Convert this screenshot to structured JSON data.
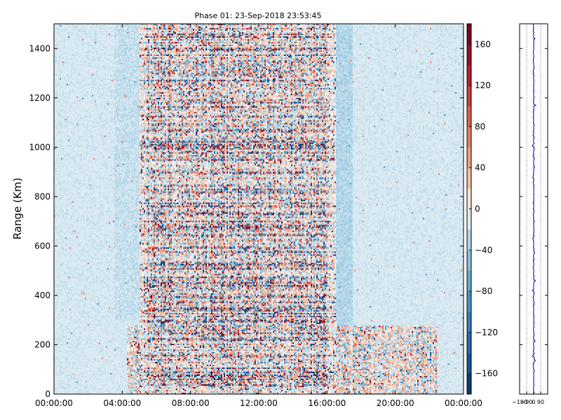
{
  "chart_data": [
    {
      "type": "heatmap",
      "title": "Phase 01: 23-Sep-2018 23:53:45",
      "ylabel": "Range (Km)",
      "xlabel": "",
      "x_ticks": [
        "00:00:00",
        "04:00:00",
        "08:00:00",
        "12:00:00",
        "16:00:00",
        "20:00:00",
        "00:00:00"
      ],
      "x_tick_hours": [
        0,
        4,
        8,
        12,
        16,
        20,
        24
      ],
      "xlim_hours": [
        0,
        24
      ],
      "y_ticks": [
        0,
        200,
        400,
        600,
        800,
        1000,
        1200,
        1400
      ],
      "ylim": [
        0,
        1500
      ],
      "colormap": "RdBu_r",
      "colorbar": {
        "ticks": [
          -160,
          -120,
          -80,
          -40,
          0,
          40,
          80,
          120,
          160
        ],
        "labels": [
          "−160",
          "−120",
          "−80",
          "−40",
          "0",
          "40",
          "80",
          "120",
          "160"
        ],
        "range": [
          -180,
          180
        ],
        "levels": 18
      },
      "noisy_region_hours": [
        5,
        16.5
      ],
      "noisy_low_range_region": {
        "hours": [
          4.3,
          22.5
        ],
        "range_max": 280
      },
      "colors": {
        "neg_max": "#053061",
        "neg_mid": "#4393c3",
        "neg_low": "#d1e5f0",
        "zero": "#f7f7f7",
        "pos_low": "#fddbc7",
        "pos_mid": "#d6604d",
        "pos_max": "#67001f"
      }
    },
    {
      "type": "line",
      "title": "",
      "x_ticks": [
        -180,
        -90,
        0,
        90
      ],
      "x_tick_labels": [
        "−180",
        "−90",
        "0",
        "90"
      ],
      "xlim": [
        -180,
        180
      ],
      "ylim": [
        0,
        1500
      ],
      "y_ticks": [
        0,
        200,
        400,
        600,
        800,
        1000,
        1200,
        1400
      ],
      "series": [
        {
          "color": "#0000cc",
          "mean_phase": 0,
          "spread": 12
        }
      ],
      "grid_x": true
    }
  ]
}
